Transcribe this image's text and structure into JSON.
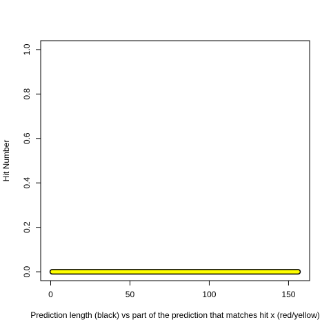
{
  "chart_data": {
    "type": "line",
    "title": "",
    "xlabel": "Prediction length (black) vs part of the prediction that matches hit x (red/yellow)",
    "ylabel": "Hit Number",
    "xlim": [
      -6.3,
      163.3
    ],
    "ylim": [
      -0.04,
      1.04
    ],
    "x_ticks": [
      0,
      50,
      100,
      150
    ],
    "y_ticks": [
      0.0,
      0.2,
      0.4,
      0.6,
      0.8,
      1.0
    ],
    "x_tick_labels": [
      "0",
      "50",
      "100",
      "150"
    ],
    "y_tick_labels": [
      "0.0",
      "0.2",
      "0.4",
      "0.6",
      "0.8",
      "1.0"
    ],
    "grid": false,
    "legend": "none",
    "series": [
      {
        "color": "#000000",
        "x": [
          1,
          156
        ],
        "y": [
          0,
          0
        ],
        "line_style": "thick segment"
      },
      {
        "color": "#ffff00",
        "x": [
          1,
          156
        ],
        "y": [
          0,
          0
        ],
        "line_style": "thick segment"
      }
    ]
  }
}
